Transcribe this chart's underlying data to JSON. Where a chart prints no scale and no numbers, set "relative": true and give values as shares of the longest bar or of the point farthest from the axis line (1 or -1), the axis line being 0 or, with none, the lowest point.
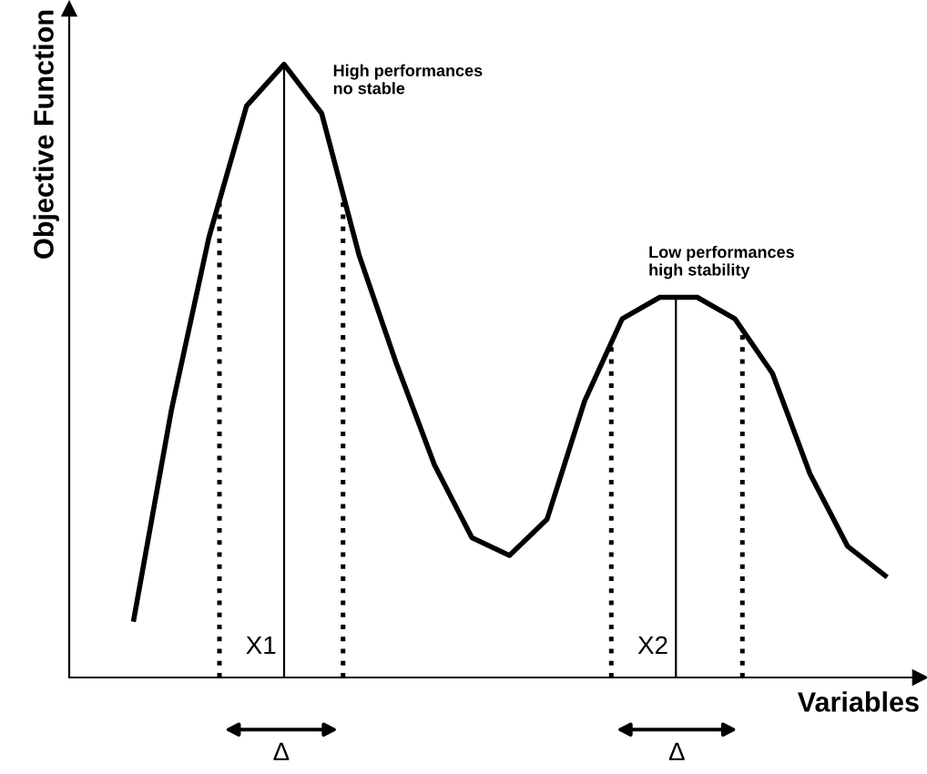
{
  "chart_data": {
    "type": "line",
    "relative": true,
    "xlabel": "Variables",
    "ylabel": "Objective Function",
    "color": "#000000",
    "categories": [
      null,
      null,
      null,
      null,
      null,
      null,
      null,
      null,
      null,
      null,
      null,
      null,
      null,
      null,
      null,
      null,
      null,
      null,
      null,
      null,
      null
    ],
    "values": [
      0.095,
      0.436,
      0.718,
      0.932,
      1,
      0.92,
      0.688,
      0.51,
      0.347,
      0.228,
      0.199,
      0.258,
      0.451,
      0.585,
      0.62,
      0.62,
      0.585,
      0.496,
      0.332,
      0.214,
      0.166
    ],
    "annotations": [
      "High performances\nno stable",
      "Low performances\nhigh stability",
      "X1",
      "X2",
      "Δ",
      "Δ"
    ],
    "marker": "none",
    "line_style": "solid",
    "grid": false
  }
}
